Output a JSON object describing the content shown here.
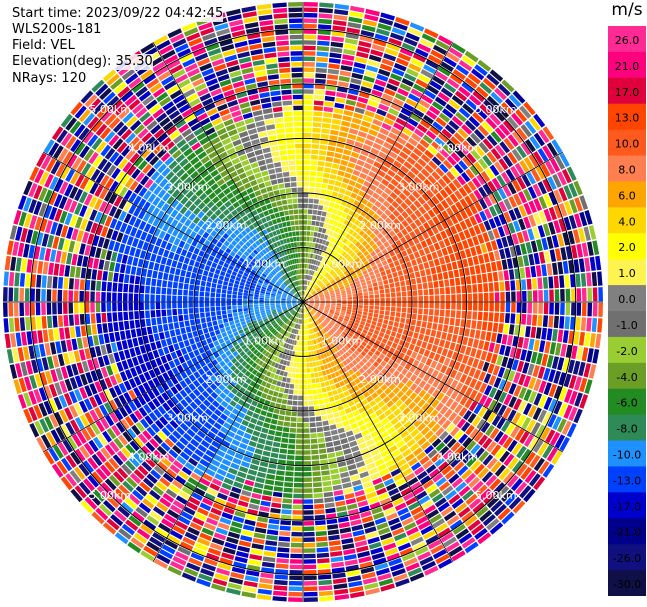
{
  "header": {
    "start_time": "Start time: 2023/09/22 04:42:45",
    "instrument": "WLS200s-181",
    "field": "Field: VEL",
    "elevation": "Elevation(deg): 35.30",
    "nrays": "NRays: 120"
  },
  "chart_data": {
    "type": "ppi-radar",
    "field": "VEL",
    "unit": "m/s",
    "elevation_deg": 35.3,
    "n_rays": 120,
    "range_rings_km": [
      1.0,
      2.0,
      3.0,
      4.0,
      5.0
    ],
    "ring_labels": [
      "1.00km",
      "2.00km",
      "3.00km",
      "4.00km",
      "5.00km"
    ],
    "max_range_km": 5.5,
    "spokes_deg": [
      0,
      30,
      60,
      90,
      120,
      150,
      180,
      210,
      240,
      270,
      300,
      330
    ],
    "colorbar": {
      "ticks": [
        "26.0",
        "21.0",
        "17.0",
        "13.0",
        "10.0",
        "8.0",
        "6.0",
        "4.0",
        "2.0",
        "1.0",
        "0.0",
        "-1.0",
        "-2.0",
        "-4.0",
        "-6.0",
        "-8.0",
        "-10.0",
        "-13.0",
        "-17.0",
        "-21.0",
        "-26.0",
        "-30.0"
      ],
      "colors": [
        "#ff2a93",
        "#ff007f",
        "#e0003c",
        "#ff4500",
        "#ff5a1e",
        "#ff7f50",
        "#ffa500",
        "#ffd700",
        "#ffff00",
        "#fff44f",
        "#808080",
        "#707070",
        "#9acd32",
        "#6b9e24",
        "#228b22",
        "#2e8b57",
        "#1e90ff",
        "#0040ff",
        "#0000cd",
        "#00008b",
        "#101080",
        "#101048"
      ]
    },
    "wind_pattern": {
      "direction_max_toward_deg": 90,
      "max_speed_ms": 14.5,
      "min_speed_ms": 9.0
    }
  }
}
